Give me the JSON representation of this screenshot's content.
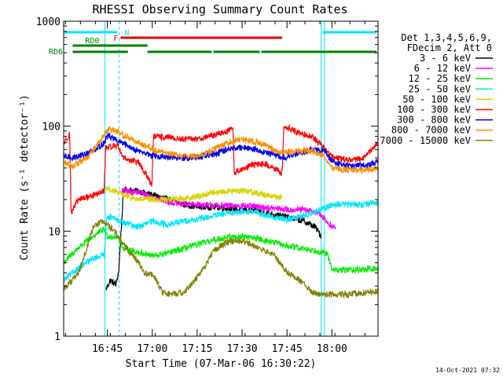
{
  "chart_data": {
    "type": "line",
    "title": "RHESSI Observing Summary Count Rates",
    "xlabel": "Start Time (07-Mar-06 16:30:22)",
    "ylabel": "Count Rate (s⁻¹ detector⁻¹)",
    "yscale": "log",
    "ylim": [
      1,
      1000
    ],
    "xlim_minutes": [
      0,
      105
    ],
    "x_tick_labels": [
      "16:45",
      "17:00",
      "17:15",
      "17:30",
      "17:45",
      "18:00"
    ],
    "x_tick_minutes": [
      14.6,
      29.6,
      44.6,
      59.6,
      74.6,
      89.6
    ],
    "y_tick_labels": [
      "1",
      "10",
      "100",
      "1000"
    ],
    "y_tick_values": [
      1,
      10,
      100,
      1000
    ],
    "legend_header": [
      "Det 1,3,4,5,6,9,",
      "FDecim 2, Att 0"
    ],
    "timestamp": "14-Oct-2021 07:32",
    "flags": {
      "N": {
        "label": "N",
        "color": "#00e5ff",
        "intervals": [
          [
            0,
            18.5
          ],
          [
            86.5,
            105
          ]
        ]
      },
      "F": {
        "label": "F",
        "color": "#e00000",
        "intervals": [
          [
            19,
            73
          ]
        ]
      },
      "RD0": {
        "label": "RD0",
        "color": "#008000",
        "intervals": [
          [
            3,
            28
          ]
        ]
      },
      "RD6": {
        "label": "RD6",
        "color": "#008000",
        "intervals": [
          [
            3,
            22
          ],
          [
            28,
            50
          ],
          [
            50,
            66
          ],
          [
            66,
            105
          ]
        ]
      }
    },
    "vertical_lines": {
      "solid_minutes": [
        0,
        13.8,
        86,
        87.1
      ],
      "dashed_minutes": [
        18.5,
        105
      ],
      "color": "#00e5ff"
    },
    "series": [
      {
        "name": "3 - 6 keV",
        "color": "#000000",
        "points": [
          [
            14.2,
            2.8
          ],
          [
            15.5,
            3.4
          ],
          [
            17.5,
            3.1
          ],
          [
            18.4,
            4.2
          ],
          [
            20,
            25
          ],
          [
            25,
            24
          ],
          [
            30,
            22
          ],
          [
            35,
            20
          ],
          [
            40,
            18
          ],
          [
            45,
            17
          ],
          [
            50,
            17
          ],
          [
            55,
            16.5
          ],
          [
            60,
            16
          ],
          [
            65,
            15.5
          ],
          [
            70,
            14.5
          ],
          [
            75,
            13.5
          ],
          [
            80,
            12.5
          ],
          [
            84,
            11
          ],
          [
            86,
            9
          ]
        ]
      },
      {
        "name": "6 - 12 keV",
        "color": "#ff00ff",
        "points": [
          [
            19.5,
            24
          ],
          [
            25,
            23.5
          ],
          [
            30,
            21
          ],
          [
            35,
            19
          ],
          [
            40,
            18
          ],
          [
            45,
            18
          ],
          [
            50,
            17.5
          ],
          [
            55,
            17.5
          ],
          [
            60,
            17.5
          ],
          [
            65,
            17
          ],
          [
            70,
            16.5
          ],
          [
            75,
            16
          ],
          [
            80,
            16
          ],
          [
            85,
            15
          ],
          [
            89,
            11.5
          ],
          [
            91,
            10.5
          ]
        ]
      },
      {
        "name": "12 - 25 keV",
        "color": "#00ee00",
        "points": [
          [
            0,
            5
          ],
          [
            5,
            7
          ],
          [
            10,
            9
          ],
          [
            13.5,
            10.5
          ],
          [
            14.5,
            9
          ],
          [
            18.4,
            8.8
          ],
          [
            20,
            6.8
          ],
          [
            25,
            6.3
          ],
          [
            30,
            5.8
          ],
          [
            35,
            6.2
          ],
          [
            40,
            6.8
          ],
          [
            45,
            7.5
          ],
          [
            50,
            8.2
          ],
          [
            55,
            8.8
          ],
          [
            60,
            8.9
          ],
          [
            65,
            8.5
          ],
          [
            70,
            7.8
          ],
          [
            75,
            7.2
          ],
          [
            80,
            6.8
          ],
          [
            85,
            6.5
          ],
          [
            88,
            6
          ],
          [
            90,
            4.2
          ],
          [
            95,
            4.3
          ],
          [
            100,
            4.3
          ],
          [
            105,
            4.4
          ]
        ]
      },
      {
        "name": "25 - 50 keV",
        "color": "#00e5ff",
        "points": [
          [
            0,
            3.4
          ],
          [
            5,
            4.5
          ],
          [
            10,
            5.5
          ],
          [
            13.5,
            6
          ],
          [
            14.5,
            14
          ],
          [
            20,
            12
          ],
          [
            25,
            11
          ],
          [
            30,
            12.5
          ],
          [
            35,
            11.5
          ],
          [
            40,
            12.5
          ],
          [
            45,
            13
          ],
          [
            50,
            14
          ],
          [
            55,
            14.8
          ],
          [
            60,
            15.5
          ],
          [
            65,
            15
          ],
          [
            70,
            13.5
          ],
          [
            75,
            13
          ],
          [
            80,
            14
          ],
          [
            86,
            16
          ],
          [
            90,
            18
          ],
          [
            95,
            18
          ],
          [
            100,
            18
          ],
          [
            105,
            18.5
          ]
        ]
      },
      {
        "name": "50 - 100 keV",
        "color": "#d4d400",
        "points": [
          [
            14,
            26
          ],
          [
            17,
            24
          ],
          [
            20,
            22
          ],
          [
            25,
            20
          ],
          [
            30,
            20
          ],
          [
            35,
            20
          ],
          [
            40,
            20.5
          ],
          [
            45,
            21.5
          ],
          [
            50,
            23.5
          ],
          [
            55,
            24
          ],
          [
            60,
            24.5
          ],
          [
            65,
            23
          ],
          [
            70,
            21.5
          ],
          [
            73,
            21
          ]
        ]
      },
      {
        "name": "100 - 300 keV",
        "color": "#ff0000",
        "points": [
          [
            0,
            68
          ],
          [
            2,
            85
          ],
          [
            2.5,
            15
          ],
          [
            5,
            20
          ],
          [
            10,
            22
          ],
          [
            13.5,
            24
          ],
          [
            14,
            62
          ],
          [
            18,
            66
          ],
          [
            20,
            50
          ],
          [
            25,
            45
          ],
          [
            29.5,
            28
          ],
          [
            30,
            80
          ],
          [
            35,
            78
          ],
          [
            40,
            75
          ],
          [
            45,
            76
          ],
          [
            50,
            82
          ],
          [
            55,
            90
          ],
          [
            56.5,
            100
          ],
          [
            57,
            36
          ],
          [
            62,
            42
          ],
          [
            67,
            44
          ],
          [
            70,
            40
          ],
          [
            73,
            36
          ],
          [
            73.5,
            100
          ],
          [
            78,
            88
          ],
          [
            83,
            80
          ],
          [
            87,
            62
          ],
          [
            90,
            50
          ],
          [
            95,
            48
          ],
          [
            100,
            49
          ],
          [
            105,
            70
          ]
        ]
      },
      {
        "name": "300 - 800 keV",
        "color": "#0000ee",
        "points": [
          [
            0,
            52
          ],
          [
            3,
            50
          ],
          [
            8,
            55
          ],
          [
            13,
            67
          ],
          [
            15,
            82
          ],
          [
            17,
            75
          ],
          [
            20,
            68
          ],
          [
            25,
            58
          ],
          [
            30,
            52
          ],
          [
            35,
            50
          ],
          [
            40,
            50
          ],
          [
            45,
            51
          ],
          [
            50,
            54
          ],
          [
            55,
            60
          ],
          [
            58,
            63
          ],
          [
            62,
            62
          ],
          [
            65,
            59
          ],
          [
            70,
            54
          ],
          [
            73,
            50
          ],
          [
            78,
            54
          ],
          [
            83,
            60
          ],
          [
            87,
            58
          ],
          [
            90,
            45
          ],
          [
            95,
            42
          ],
          [
            100,
            42
          ],
          [
            105,
            46
          ]
        ]
      },
      {
        "name": "800 - 7000 keV",
        "color": "#ff8c00",
        "points": [
          [
            0,
            45
          ],
          [
            3,
            42
          ],
          [
            8,
            50
          ],
          [
            13,
            80
          ],
          [
            15,
            93
          ],
          [
            18,
            88
          ],
          [
            20,
            82
          ],
          [
            25,
            70
          ],
          [
            30,
            60
          ],
          [
            35,
            55
          ],
          [
            40,
            52
          ],
          [
            45,
            52
          ],
          [
            50,
            60
          ],
          [
            55,
            70
          ],
          [
            58,
            75
          ],
          [
            62,
            73
          ],
          [
            65,
            70
          ],
          [
            70,
            60
          ],
          [
            73,
            56
          ],
          [
            78,
            58
          ],
          [
            83,
            58
          ],
          [
            87,
            52
          ],
          [
            90,
            40
          ],
          [
            95,
            38
          ],
          [
            100,
            38
          ],
          [
            105,
            40
          ]
        ]
      },
      {
        "name": "7000 - 15000 keV",
        "color": "#808000",
        "points": [
          [
            0,
            2.8
          ],
          [
            5,
            4
          ],
          [
            10,
            11
          ],
          [
            13,
            12.5
          ],
          [
            17,
            10
          ],
          [
            20,
            7.5
          ],
          [
            25,
            5
          ],
          [
            27,
            4
          ],
          [
            30,
            3.8
          ],
          [
            33,
            2.6
          ],
          [
            36,
            2.5
          ],
          [
            40,
            2.6
          ],
          [
            43,
            3.2
          ],
          [
            47,
            4.5
          ],
          [
            50,
            6.5
          ],
          [
            55,
            8
          ],
          [
            60,
            8
          ],
          [
            65,
            7
          ],
          [
            70,
            6
          ],
          [
            75,
            4
          ],
          [
            80,
            3.2
          ],
          [
            83,
            2.6
          ],
          [
            86,
            2.5
          ],
          [
            90,
            2.5
          ],
          [
            95,
            2.5
          ],
          [
            100,
            2.6
          ],
          [
            105,
            2.7
          ]
        ]
      }
    ]
  }
}
